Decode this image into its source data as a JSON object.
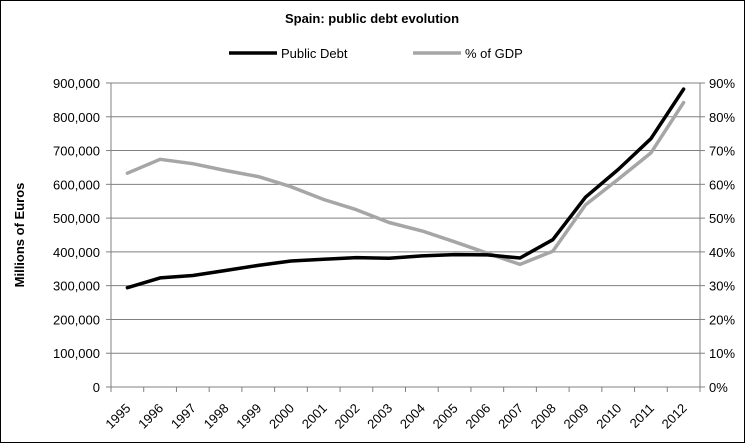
{
  "chart_data": {
    "type": "line",
    "title": "Spain: public debt evolution",
    "ylabel": "Millions of Euros",
    "ylabel_right": "",
    "x": [
      "1995",
      "1996",
      "1997",
      "1998",
      "1999",
      "2000",
      "2001",
      "2002",
      "2003",
      "2004",
      "2005",
      "2006",
      "2007",
      "2008",
      "2009",
      "2010",
      "2011",
      "2012"
    ],
    "ylim": [
      0,
      900000
    ],
    "y_ticks": [
      0,
      100000,
      200000,
      300000,
      400000,
      500000,
      600000,
      700000,
      800000,
      900000
    ],
    "y_tick_labels": [
      "0",
      "100,000",
      "200,000",
      "300,000",
      "400,000",
      "500,000",
      "600,000",
      "700,000",
      "800,000",
      "900,000"
    ],
    "ylim_right": [
      0,
      90
    ],
    "y_ticks_right": [
      0,
      10,
      20,
      30,
      40,
      50,
      60,
      70,
      80,
      90
    ],
    "y_tick_labels_right": [
      "0%",
      "10%",
      "20%",
      "30%",
      "40%",
      "50%",
      "60%",
      "70%",
      "80%",
      "90%"
    ],
    "grid": true,
    "legend_position": "top-center",
    "series": [
      {
        "name": "Public Debt",
        "axis": "left",
        "color": "#000000",
        "values": [
          294000,
          323000,
          330000,
          345000,
          360000,
          373000,
          378000,
          383000,
          381000,
          388000,
          392000,
          391000,
          382000,
          436000,
          562000,
          644000,
          735000,
          882000
        ]
      },
      {
        "name": "% of GDP",
        "axis": "right",
        "color": "#a6a6a6",
        "values": [
          63.3,
          67.4,
          66.1,
          64.1,
          62.3,
          59.3,
          55.5,
          52.5,
          48.7,
          46.2,
          43.0,
          39.6,
          36.3,
          40.2,
          53.9,
          61.5,
          69.3,
          84.2
        ]
      }
    ]
  }
}
